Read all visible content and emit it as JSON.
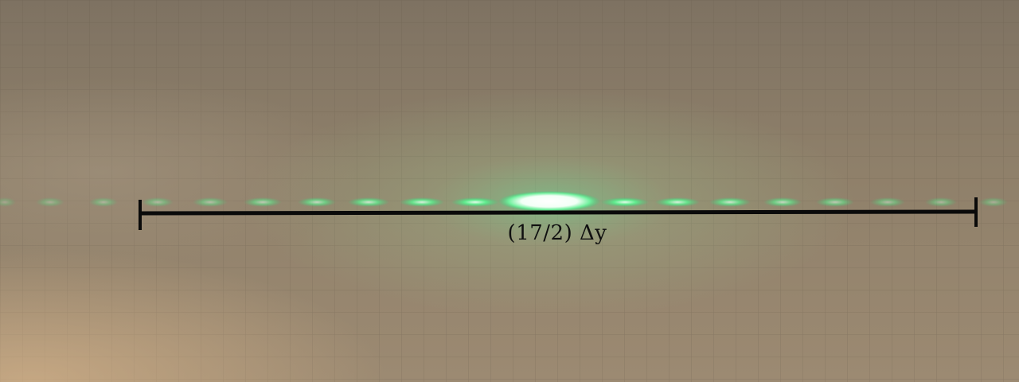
{
  "measurement": {
    "label": "(17/2) Δy"
  },
  "colors": {
    "background": "#8a7b66",
    "laser": "#39e07a",
    "bar": "#0a0a0a"
  }
}
